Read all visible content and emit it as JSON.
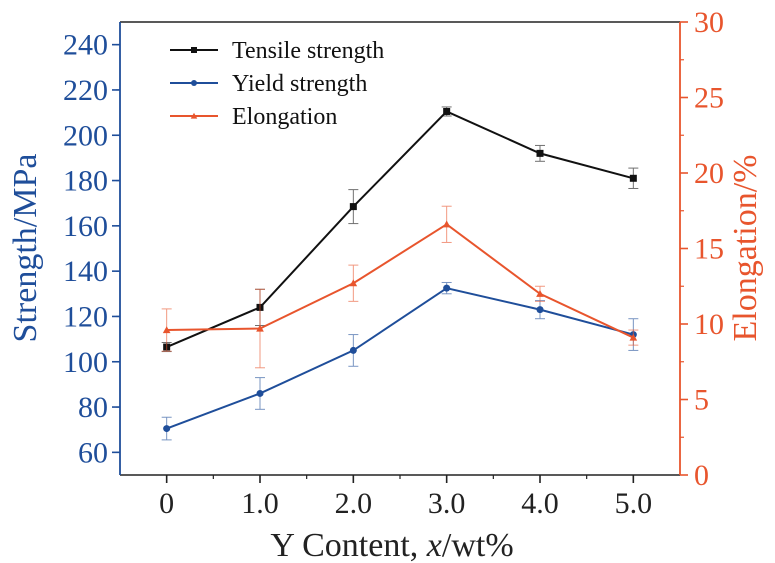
{
  "chart_data": {
    "type": "line",
    "x": [
      0,
      1.0,
      2.0,
      3.0,
      4.0,
      5.0
    ],
    "x_tick_labels": [
      "0",
      "1.0",
      "2.0",
      "3.0",
      "4.0",
      "5.0"
    ],
    "xlabel_prefix": "Y Content, ",
    "xlabel_var": "x",
    "xlabel_suffix": "/wt%",
    "ylabel_left": "Strength/MPa",
    "ylabel_right": "Elongation/%",
    "ylim_left": [
      50,
      250
    ],
    "ylim_right": [
      0,
      30
    ],
    "y_ticks_left": [
      60,
      80,
      100,
      120,
      140,
      160,
      180,
      200,
      220,
      240
    ],
    "y_ticks_right": [
      0,
      5,
      10,
      15,
      20,
      25,
      30
    ],
    "xlim": [
      -0.5,
      5.5
    ],
    "legend_position": "top-left",
    "series": [
      {
        "name": "Tensile strength",
        "axis": "left",
        "color": "#111111",
        "marker": "square",
        "values": [
          106.5,
          124,
          168.5,
          210.5,
          192,
          181
        ],
        "errors": [
          2,
          8,
          7.5,
          2,
          3.5,
          4.5
        ]
      },
      {
        "name": "Yield strength",
        "axis": "left",
        "color": "#1f4e9a",
        "marker": "circle",
        "values": [
          70.5,
          86,
          105,
          132.5,
          123,
          112
        ],
        "errors": [
          5,
          7,
          7,
          2.5,
          4,
          7
        ]
      },
      {
        "name": "Elongation",
        "axis": "right",
        "color": "#e8552d",
        "marker": "triangle",
        "values": [
          9.6,
          9.7,
          12.7,
          16.6,
          12.0,
          9.1
        ],
        "errors": [
          1.4,
          2.6,
          1.2,
          1.2,
          0.5,
          0.5
        ]
      }
    ]
  }
}
